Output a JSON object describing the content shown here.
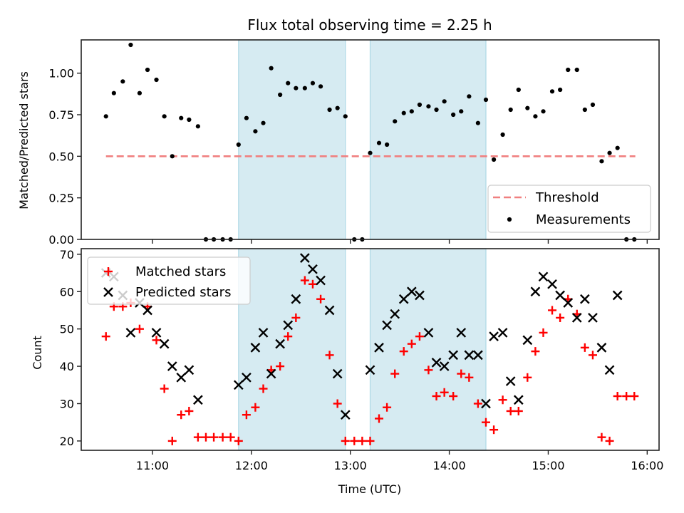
{
  "chart_data": [
    {
      "type": "scatter",
      "title": "Flux total observing time = 2.25 h",
      "xlabel": "",
      "ylabel": "Matched/Predicted stars",
      "xlim": [
        10.28,
        16.12
      ],
      "ylim": [
        0.0,
        1.2
      ],
      "yticks": [
        0.0,
        0.25,
        0.5,
        0.75,
        1.0
      ],
      "ytick_labels": [
        "0.00",
        "0.25",
        "0.50",
        "0.75",
        "1.00"
      ],
      "xticks": [
        11,
        12,
        13,
        14,
        15,
        16
      ],
      "grid": false,
      "legend": {
        "placement": "lower-right",
        "entries": [
          "Threshold",
          "Measurements"
        ]
      },
      "shaded_intervals": [
        [
          11.87,
          12.95
        ],
        [
          13.2,
          14.37
        ]
      ],
      "threshold": {
        "name": "Threshold",
        "value": 0.5,
        "x_range": [
          10.53,
          15.88
        ],
        "color": "#f08080"
      },
      "series": [
        {
          "name": "Measurements",
          "color": "#000000",
          "x": [
            10.53,
            10.61,
            10.7,
            10.78,
            10.87,
            10.95,
            11.04,
            11.12,
            11.2,
            11.29,
            11.37,
            11.46,
            11.54,
            11.62,
            11.71,
            11.79,
            11.87,
            11.95,
            12.04,
            12.12,
            12.2,
            12.29,
            12.37,
            12.45,
            12.54,
            12.62,
            12.7,
            12.79,
            12.87,
            12.95,
            13.04,
            13.12,
            13.2,
            13.29,
            13.37,
            13.45,
            13.54,
            13.62,
            13.7,
            13.79,
            13.87,
            13.95,
            14.04,
            14.12,
            14.2,
            14.29,
            14.37,
            14.45,
            14.54,
            14.62,
            14.7,
            14.79,
            14.87,
            14.95,
            15.04,
            15.12,
            15.2,
            15.29,
            15.37,
            15.45,
            15.54,
            15.62,
            15.7,
            15.79,
            15.87
          ],
          "y": [
            0.74,
            0.88,
            0.95,
            1.17,
            0.88,
            1.02,
            0.96,
            0.74,
            0.5,
            0.73,
            0.72,
            0.68,
            0.0,
            0.0,
            0.0,
            0.0,
            0.57,
            0.73,
            0.65,
            0.7,
            1.03,
            0.87,
            0.94,
            0.91,
            0.91,
            0.94,
            0.92,
            0.78,
            0.79,
            0.74,
            0.0,
            0.0,
            0.52,
            0.58,
            0.57,
            0.71,
            0.76,
            0.77,
            0.81,
            0.8,
            0.78,
            0.83,
            0.75,
            0.77,
            0.86,
            0.7,
            0.84,
            0.48,
            0.63,
            0.78,
            0.9,
            0.79,
            0.74,
            0.77,
            0.89,
            0.9,
            1.02,
            1.02,
            0.78,
            0.81,
            0.47,
            0.52,
            0.55,
            0.0,
            0.0
          ]
        }
      ]
    },
    {
      "type": "scatter",
      "title": "",
      "xlabel": "Time (UTC)",
      "ylabel": "Count",
      "xlim": [
        10.28,
        16.12
      ],
      "ylim": [
        17.5,
        71.5
      ],
      "yticks": [
        20,
        30,
        40,
        50,
        60,
        70
      ],
      "xticks": [
        11,
        12,
        13,
        14,
        15,
        16
      ],
      "xtick_labels": [
        "11:00",
        "12:00",
        "13:00",
        "14:00",
        "15:00",
        "16:00"
      ],
      "grid": false,
      "legend": {
        "placement": "upper-left",
        "entries": [
          "Matched stars",
          "Predicted stars"
        ]
      },
      "shaded_intervals": [
        [
          11.87,
          12.95
        ],
        [
          13.2,
          14.37
        ]
      ],
      "series": [
        {
          "name": "Matched stars",
          "marker": "+",
          "color": "#ff0000",
          "x": [
            10.53,
            10.61,
            10.7,
            10.78,
            10.87,
            10.95,
            11.04,
            11.12,
            11.2,
            11.29,
            11.37,
            11.46,
            11.54,
            11.62,
            11.71,
            11.79,
            11.87,
            11.95,
            12.04,
            12.12,
            12.2,
            12.29,
            12.37,
            12.45,
            12.54,
            12.62,
            12.7,
            12.79,
            12.87,
            12.95,
            13.04,
            13.12,
            13.2,
            13.29,
            13.37,
            13.45,
            13.54,
            13.62,
            13.7,
            13.79,
            13.87,
            13.95,
            14.04,
            14.12,
            14.2,
            14.29,
            14.37,
            14.45,
            14.54,
            14.62,
            14.7,
            14.79,
            14.87,
            14.95,
            15.04,
            15.12,
            15.2,
            15.29,
            15.37,
            15.45,
            15.54,
            15.62,
            15.7,
            15.79,
            15.87
          ],
          "y": [
            48,
            56,
            56,
            57,
            50,
            56,
            47,
            34,
            20,
            27,
            28,
            21,
            21,
            21,
            21,
            21,
            20,
            27,
            29,
            34,
            39,
            40,
            48,
            53,
            63,
            62,
            58,
            43,
            30,
            20,
            20,
            20,
            20,
            26,
            29,
            38,
            44,
            46,
            48,
            39,
            32,
            33,
            32,
            38,
            37,
            30,
            25,
            23,
            31,
            28,
            28,
            37,
            44,
            49,
            55,
            53,
            58,
            54,
            45,
            43,
            21,
            20,
            32,
            32,
            32
          ]
        },
        {
          "name": "Predicted stars",
          "marker": "x",
          "color": "#000000",
          "x": [
            10.53,
            10.61,
            10.7,
            10.78,
            10.87,
            10.95,
            11.04,
            11.12,
            11.2,
            11.29,
            11.37,
            11.46,
            11.87,
            11.95,
            12.04,
            12.12,
            12.2,
            12.29,
            12.37,
            12.45,
            12.54,
            12.62,
            12.7,
            12.79,
            12.87,
            12.95,
            13.2,
            13.29,
            13.37,
            13.45,
            13.54,
            13.62,
            13.7,
            13.79,
            13.87,
            13.95,
            14.04,
            14.12,
            14.2,
            14.29,
            14.37,
            14.45,
            14.54,
            14.62,
            14.7,
            14.79,
            14.87,
            14.95,
            15.04,
            15.12,
            15.2,
            15.29,
            15.37,
            15.45,
            15.54,
            15.62,
            15.7
          ],
          "y": [
            65,
            64,
            59,
            49,
            57,
            55,
            49,
            46,
            40,
            37,
            39,
            31,
            35,
            37,
            45,
            49,
            38,
            46,
            51,
            58,
            69,
            66,
            63,
            55,
            38,
            27,
            39,
            45,
            51,
            54,
            58,
            60,
            59,
            49,
            41,
            40,
            43,
            49,
            43,
            43,
            30,
            48,
            49,
            36,
            31,
            47,
            60,
            64,
            62,
            59,
            57,
            53,
            58,
            53,
            45,
            39,
            59
          ]
        }
      ]
    }
  ]
}
